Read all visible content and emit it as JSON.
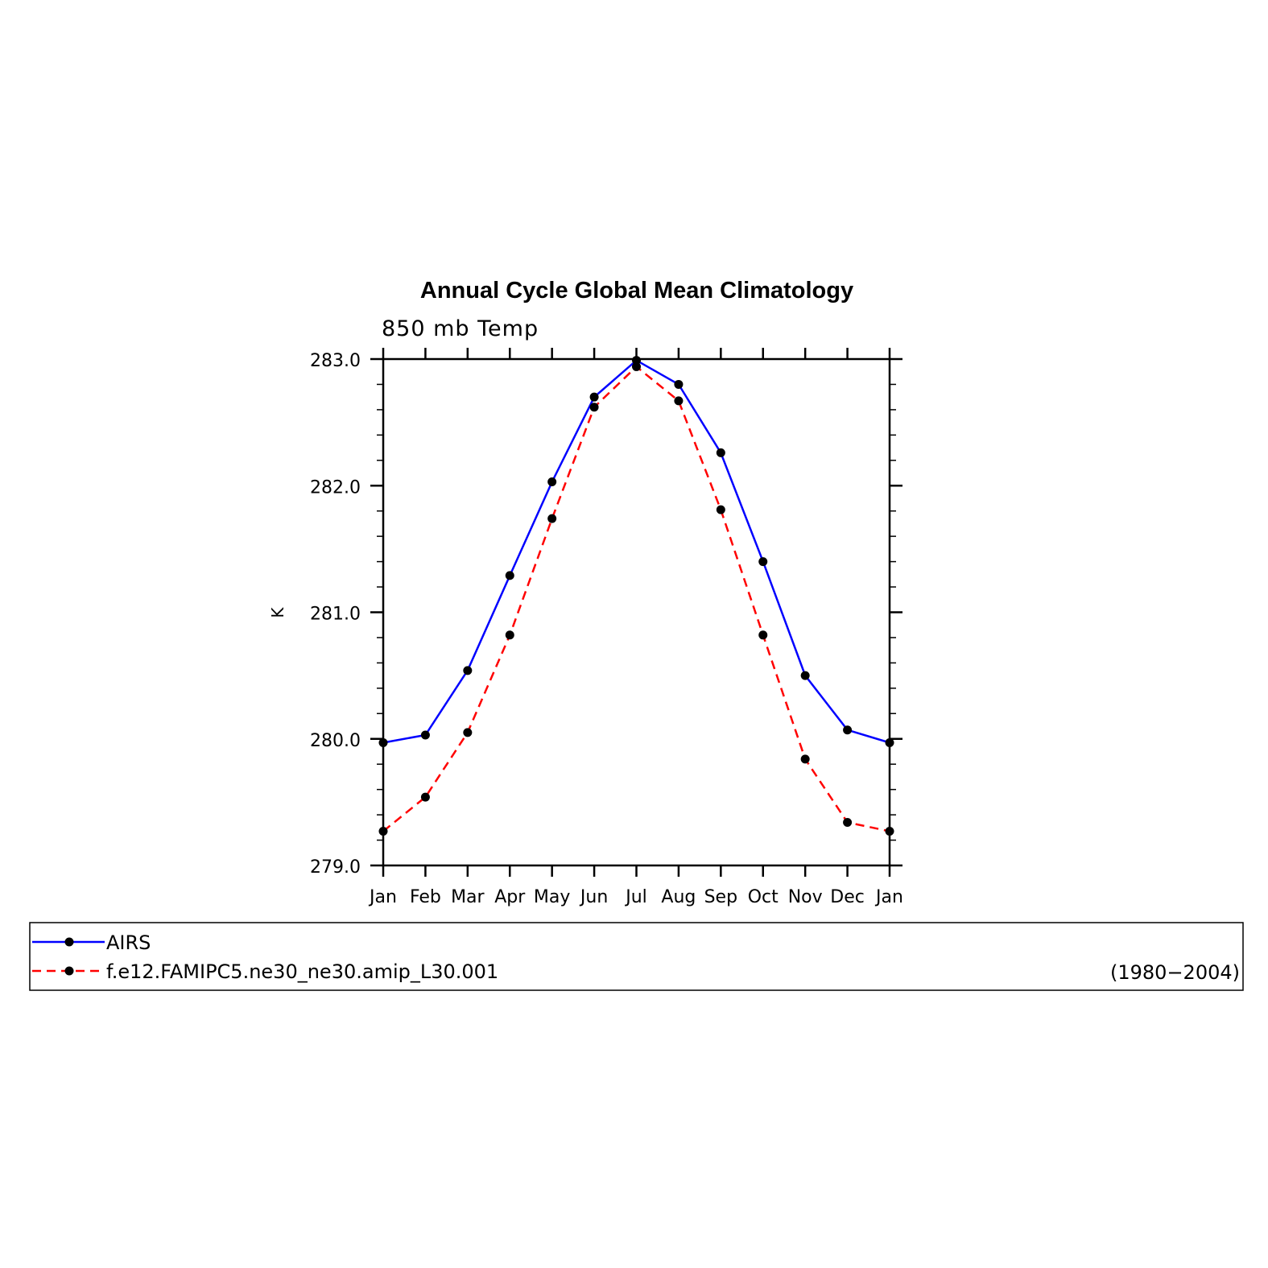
{
  "chart_data": {
    "type": "line",
    "title": "Annual Cycle Global Mean Climatology",
    "subtitle": "850 mb Temp",
    "xlabel": "",
    "ylabel": "K",
    "categories": [
      "Jan",
      "Feb",
      "Mar",
      "Apr",
      "May",
      "Jun",
      "Jul",
      "Aug",
      "Sep",
      "Oct",
      "Nov",
      "Dec",
      "Jan"
    ],
    "ylim": [
      279.0,
      283.0
    ],
    "yticks": [
      "279.0",
      "280.0",
      "281.0",
      "282.0",
      "283.0"
    ],
    "grid": false,
    "legend_position": "bottom",
    "series": [
      {
        "name": "AIRS",
        "color": "#0000ff",
        "dash": "solid",
        "values": [
          279.97,
          280.03,
          280.54,
          281.29,
          282.03,
          282.7,
          282.99,
          282.8,
          282.26,
          281.4,
          280.5,
          280.07,
          279.97
        ]
      },
      {
        "name": "f.e12.FAMIPC5.ne30_ne30.amip_L30.001",
        "color": "#ff0000",
        "dash": "dashed",
        "values": [
          279.27,
          279.54,
          280.05,
          280.82,
          281.74,
          282.62,
          282.94,
          282.67,
          281.81,
          280.82,
          279.84,
          279.34,
          279.27
        ]
      }
    ],
    "legend_note": "(1980−2004)"
  }
}
